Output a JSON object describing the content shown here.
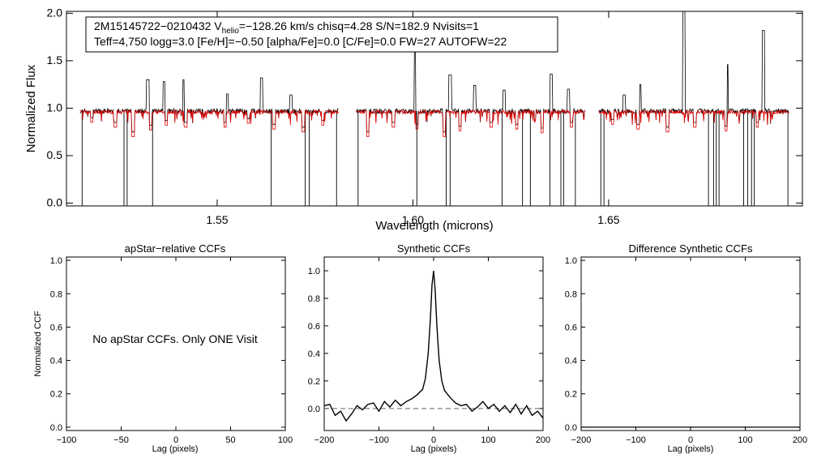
{
  "chart_data": [
    {
      "type": "line",
      "id": "spectrum",
      "title": "",
      "xlabel": "Wavelength (microns)",
      "ylabel": "Normalized Flux",
      "xlim": [
        1.5115,
        1.6995
      ],
      "ylim": [
        -0.03,
        2.02
      ],
      "xticks": [
        {
          "v": 1.55,
          "label": "1.55"
        },
        {
          "v": 1.6,
          "label": "1.60"
        },
        {
          "v": 1.65,
          "label": "1.65"
        }
      ],
      "yticks": [
        {
          "v": 0.0,
          "label": "0.0"
        },
        {
          "v": 0.5,
          "label": "0.5"
        },
        {
          "v": 1.0,
          "label": "1.0"
        },
        {
          "v": 1.5,
          "label": "1.5"
        },
        {
          "v": 2.0,
          "label": "2.0"
        }
      ],
      "legend_box": {
        "line1_prefix": "2M15145722−0210432  V",
        "line1_sub": "helio",
        "line1_suffix": "=−128.26 km/s  chisq=4.28  S/N=182.9  Nvisits=1",
        "line2": "Teff=4,750 logg=3.0 [Fe/H]=−0.50 [alpha/Fe]=0.0 [C/Fe]=0.0 FW=27 AUTOFW=22"
      },
      "chips": [
        [
          1.515,
          1.581
        ],
        [
          1.5855,
          1.644
        ],
        [
          1.6475,
          1.696
        ]
      ],
      "continuum": 0.97,
      "series": [
        {
          "color": "#000000",
          "emission": [
            [
              1.5323,
              1.3
            ],
            [
              1.5365,
              1.28
            ],
            [
              1.5415,
              1.3
            ],
            [
              1.5525,
              1.15
            ],
            [
              1.5613,
              1.32
            ],
            [
              1.5688,
              1.14
            ],
            [
              1.6007,
              1.62
            ],
            [
              1.6095,
              1.35
            ],
            [
              1.6158,
              1.24
            ],
            [
              1.6233,
              1.19
            ],
            [
              1.6353,
              1.36
            ],
            [
              1.6397,
              1.2
            ],
            [
              1.654,
              1.14
            ],
            [
              1.658,
              1.25
            ],
            [
              1.6692,
              2.02
            ],
            [
              1.6802,
              1.46
            ],
            [
              1.6895,
              1.82
            ]
          ],
          "dropouts": [
            1.5155,
            1.5262,
            1.527,
            1.5335,
            1.5638,
            1.5725,
            1.5735,
            1.5805,
            1.586,
            1.601,
            1.6085,
            1.6095,
            1.6228,
            1.628,
            1.63,
            1.635,
            1.6378,
            1.6385,
            1.6415,
            1.648,
            1.6488,
            1.6755,
            1.6768,
            1.6775,
            1.6782,
            1.6845,
            1.6855,
            1.6865,
            1.6872,
            1.6958
          ]
        },
        {
          "color": "#dd0000",
          "absorption": [
            [
              1.518,
              0.85
            ],
            [
              1.524,
              0.8
            ],
            [
              1.5285,
              0.7
            ],
            [
              1.533,
              0.77
            ],
            [
              1.537,
              0.82
            ],
            [
              1.542,
              0.8
            ],
            [
              1.552,
              0.8
            ],
            [
              1.558,
              0.84
            ],
            [
              1.5645,
              0.78
            ],
            [
              1.572,
              0.75
            ],
            [
              1.577,
              0.82
            ],
            [
              1.5885,
              0.7
            ],
            [
              1.595,
              0.8
            ],
            [
              1.601,
              0.78
            ],
            [
              1.608,
              0.7
            ],
            [
              1.612,
              0.76
            ],
            [
              1.62,
              0.8
            ],
            [
              1.6265,
              0.78
            ],
            [
              1.633,
              0.74
            ],
            [
              1.6405,
              0.8
            ],
            [
              1.651,
              0.83
            ],
            [
              1.6575,
              0.78
            ],
            [
              1.665,
              0.75
            ],
            [
              1.672,
              0.8
            ],
            [
              1.68,
              0.76
            ],
            [
              1.688,
              0.8
            ]
          ]
        }
      ]
    },
    {
      "type": "line",
      "id": "apstar",
      "title": "apStar−relative CCFs",
      "xlabel": "Lag (pixels)",
      "ylabel": "Normalized CCF",
      "xlim": [
        -100,
        100
      ],
      "ylim": [
        -0.02,
        1.02
      ],
      "xticks": [
        {
          "v": -100,
          "label": "−100"
        },
        {
          "v": -50,
          "label": "−50"
        },
        {
          "v": 0,
          "label": "0"
        },
        {
          "v": 50,
          "label": "50"
        },
        {
          "v": 100,
          "label": "100"
        }
      ],
      "yticks": [
        {
          "v": 0.0,
          "label": "0.0"
        },
        {
          "v": 0.2,
          "label": "0.2"
        },
        {
          "v": 0.4,
          "label": "0.4"
        },
        {
          "v": 0.6,
          "label": "0.6"
        },
        {
          "v": 0.8,
          "label": "0.8"
        },
        {
          "v": 1.0,
          "label": "1.0"
        }
      ],
      "annotation": "No apStar CCFs.  Only ONE Visit"
    },
    {
      "type": "line",
      "id": "synth",
      "title": "Synthetic CCFs",
      "xlabel": "Lag (pixels)",
      "ylabel": "",
      "xlim": [
        -200,
        200
      ],
      "ylim": [
        -0.16,
        1.1
      ],
      "xticks": [
        {
          "v": -200,
          "label": "−200"
        },
        {
          "v": -100,
          "label": "−100"
        },
        {
          "v": 0,
          "label": "0"
        },
        {
          "v": 100,
          "label": "100"
        },
        {
          "v": 200,
          "label": "200"
        }
      ],
      "yticks": [
        {
          "v": 0.0,
          "label": "0.0"
        },
        {
          "v": 0.2,
          "label": "0.2"
        },
        {
          "v": 0.4,
          "label": "0.4"
        },
        {
          "v": 0.6,
          "label": "0.6"
        },
        {
          "v": 0.8,
          "label": "0.8"
        },
        {
          "v": 1.0,
          "label": "1.0"
        }
      ],
      "baseline": 0.0,
      "series": [
        {
          "color": "#000000",
          "x": [
            -200,
            -190,
            -180,
            -170,
            -160,
            -150,
            -140,
            -130,
            -120,
            -110,
            -100,
            -90,
            -80,
            -70,
            -60,
            -50,
            -40,
            -30,
            -20,
            -15,
            -10,
            -6,
            -3,
            0,
            3,
            6,
            10,
            15,
            20,
            30,
            40,
            50,
            60,
            70,
            80,
            90,
            100,
            110,
            120,
            130,
            140,
            150,
            160,
            170,
            180,
            190,
            200
          ],
          "y": [
            0.02,
            0.03,
            -0.05,
            -0.02,
            -0.09,
            -0.04,
            0.02,
            -0.01,
            0.03,
            0.04,
            -0.02,
            0.05,
            0.01,
            0.06,
            0.02,
            0.05,
            0.07,
            0.1,
            0.14,
            0.22,
            0.4,
            0.65,
            0.9,
            1.0,
            0.85,
            0.6,
            0.35,
            0.2,
            0.13,
            0.08,
            0.04,
            0.02,
            0.03,
            -0.02,
            0.01,
            0.05,
            0.0,
            0.03,
            -0.02,
            0.02,
            -0.03,
            0.03,
            -0.04,
            0.02,
            -0.05,
            -0.02,
            -0.07
          ]
        }
      ]
    },
    {
      "type": "line",
      "id": "diff",
      "title": "Difference Synthetic CCFs",
      "xlabel": "Lag (pixels)",
      "ylabel": "",
      "xlim": [
        -200,
        200
      ],
      "ylim": [
        -0.02,
        1.02
      ],
      "xticks": [
        {
          "v": -200,
          "label": "−200"
        },
        {
          "v": -100,
          "label": "−100"
        },
        {
          "v": 0,
          "label": "0"
        },
        {
          "v": 100,
          "label": "100"
        },
        {
          "v": 200,
          "label": "200"
        }
      ],
      "yticks": [
        {
          "v": 0.0,
          "label": "0.0"
        },
        {
          "v": 0.2,
          "label": "0.2"
        },
        {
          "v": 0.4,
          "label": "0.4"
        },
        {
          "v": 0.6,
          "label": "0.6"
        },
        {
          "v": 0.8,
          "label": "0.8"
        },
        {
          "v": 1.0,
          "label": "1.0"
        }
      ],
      "series": [
        {
          "color": "#000000",
          "x": [
            -200,
            200
          ],
          "y": [
            0.0,
            0.0
          ]
        }
      ]
    }
  ]
}
